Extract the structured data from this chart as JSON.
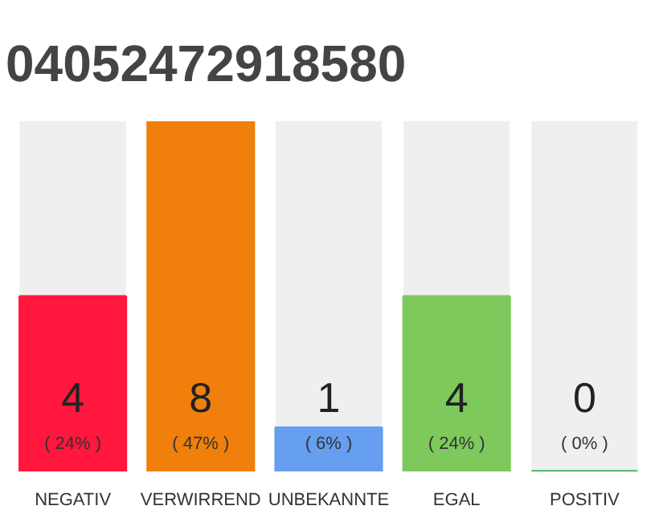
{
  "chart_data": {
    "type": "bar",
    "title": "04052472918580",
    "categories": [
      "NEGATIV",
      "VERWIRREND",
      "UNBEKANNTE",
      "EGAL",
      "POSITIV"
    ],
    "values": [
      4,
      8,
      1,
      4,
      0
    ],
    "colors": [
      "#ff173d",
      "#f07f0c",
      "#669ef0",
      "#7ec95c",
      "#22aa44"
    ],
    "data_labels": true,
    "annotations": [
      "( 24% )",
      "( 47% )",
      "( 6% )",
      "( 24% )",
      "( 0% )"
    ]
  }
}
